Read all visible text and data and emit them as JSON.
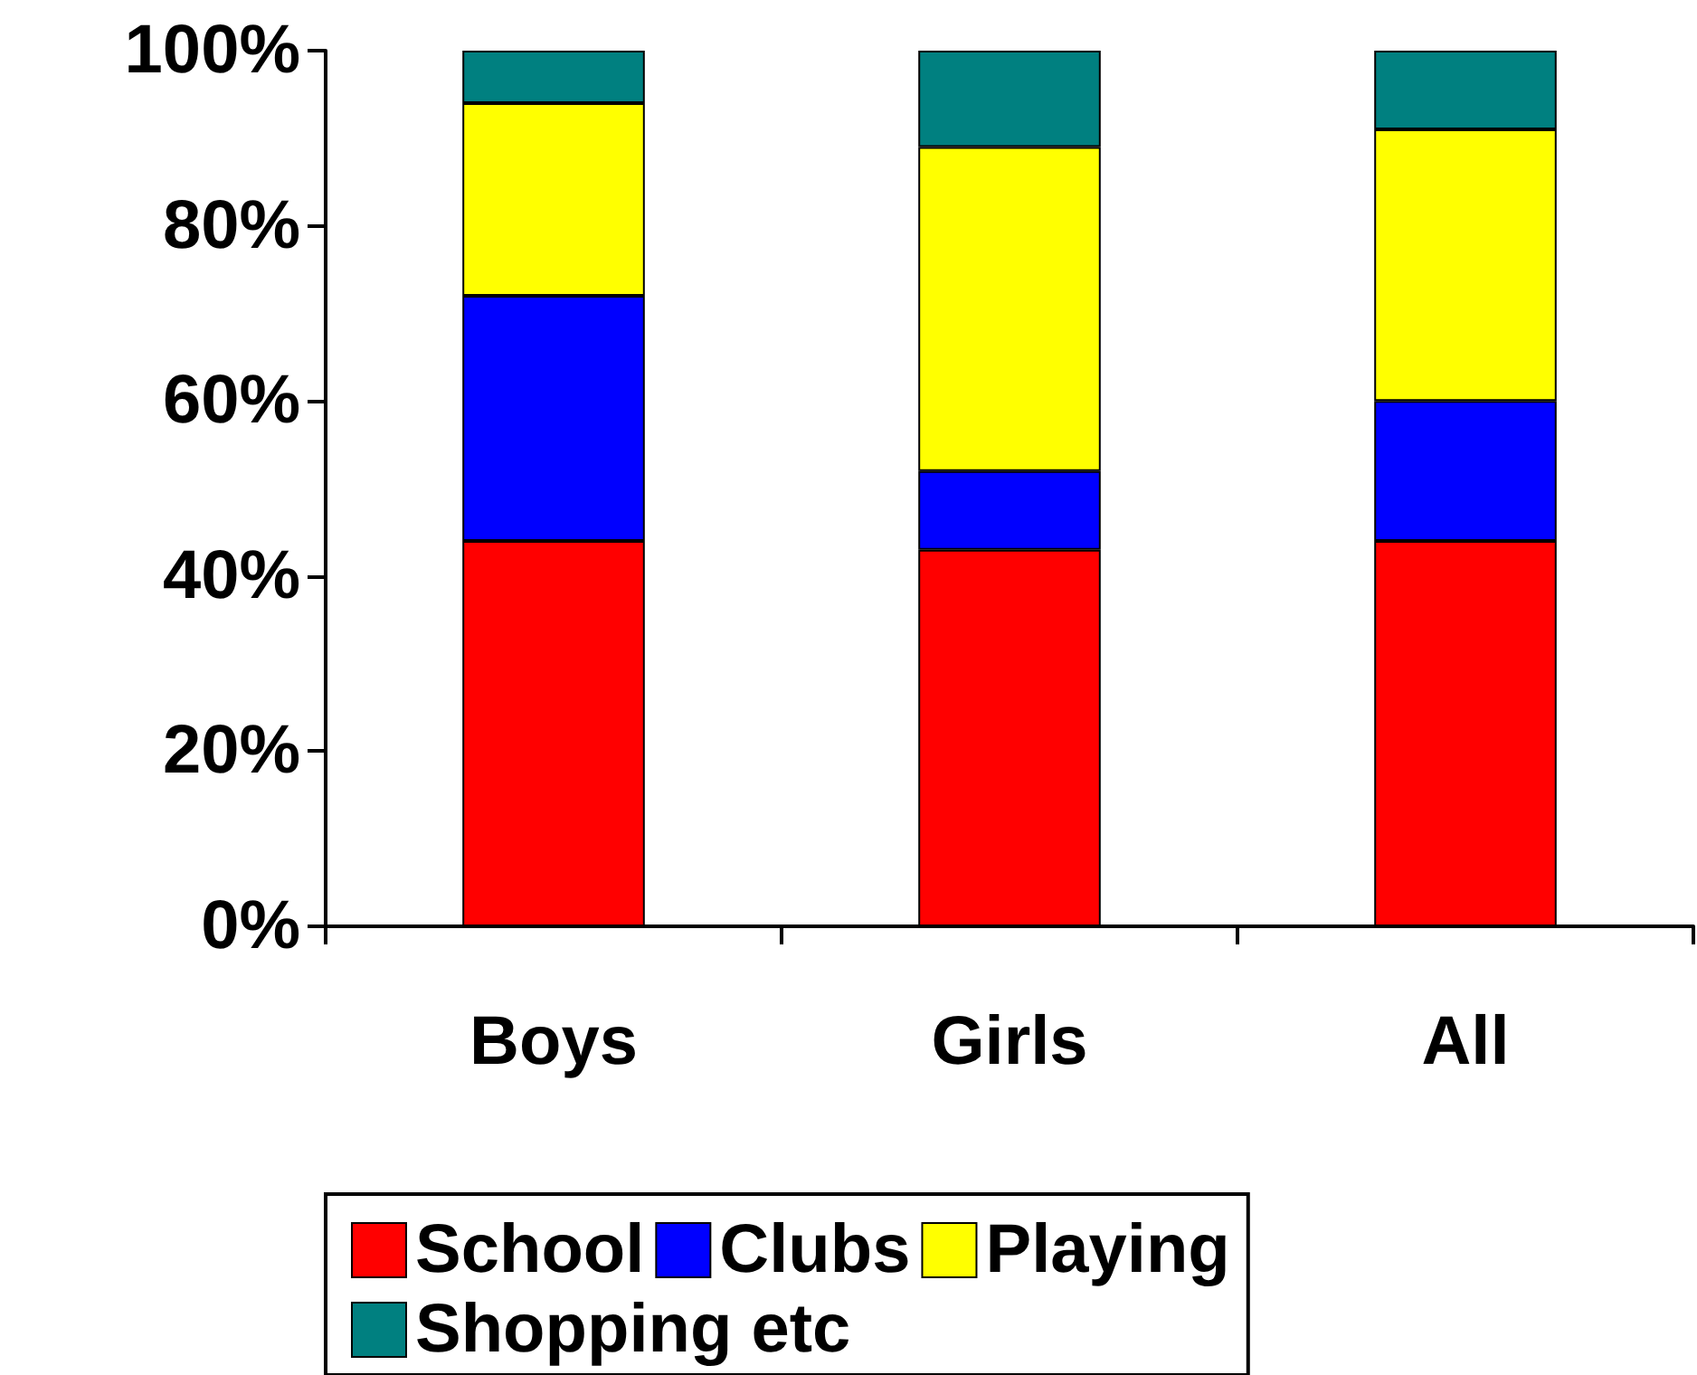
{
  "chart_data": {
    "type": "bar",
    "stacked": true,
    "categories": [
      "Boys",
      "Girls",
      "All"
    ],
    "series": [
      {
        "name": "School",
        "color": "#ff0000",
        "values": [
          44,
          43,
          44
        ]
      },
      {
        "name": "Clubs",
        "color": "#0000ff",
        "values": [
          28,
          9,
          16
        ]
      },
      {
        "name": "Playing",
        "color": "#ffff00",
        "values": [
          22,
          37,
          31
        ]
      },
      {
        "name": "Shopping etc",
        "color": "#008080",
        "values": [
          6,
          11,
          9
        ]
      }
    ],
    "ylim": [
      0,
      100
    ],
    "yticks": [
      {
        "value": 0,
        "label": "0%"
      },
      {
        "value": 20,
        "label": "20%"
      },
      {
        "value": 40,
        "label": "40%"
      },
      {
        "value": 60,
        "label": "60%"
      },
      {
        "value": 80,
        "label": "80%"
      },
      {
        "value": 100,
        "label": "100%"
      }
    ],
    "grid": false,
    "legend": "bottom"
  }
}
